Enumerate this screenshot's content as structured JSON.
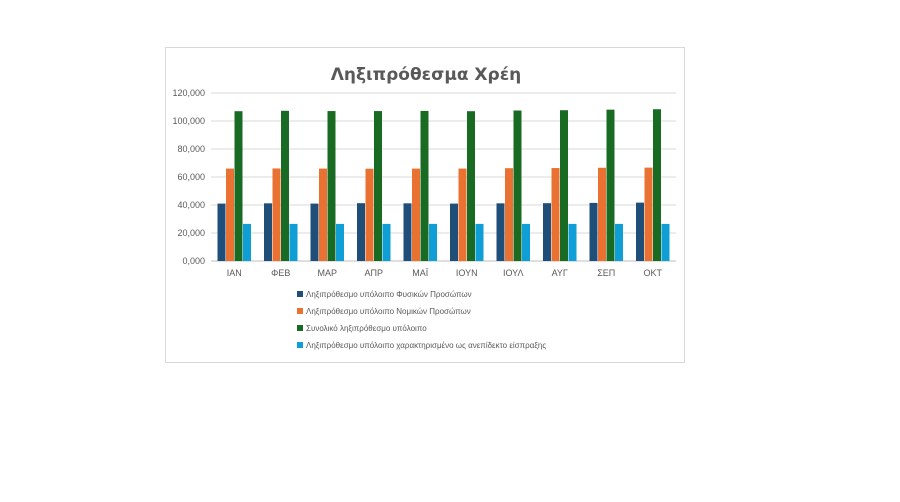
{
  "chart_data": {
    "type": "bar",
    "title": "Ληξιπρόθεσμα Χρέη",
    "xlabel": "",
    "ylabel": "",
    "ylim": [
      0,
      120000
    ],
    "yticks": [
      0,
      20000,
      40000,
      60000,
      80000,
      100000,
      120000
    ],
    "ytick_labels": [
      "0,000",
      "20,000",
      "40,000",
      "60,000",
      "80,000",
      "100,000",
      "120,000"
    ],
    "grid": true,
    "legend_position": "bottom",
    "categories": [
      "ΙΑΝ",
      "ΦΕΒ",
      "ΜΑΡ",
      "ΑΠΡ",
      "ΜΑΪ",
      "ΙΟΥΝ",
      "ΙΟΥΛ",
      "ΑΥΓ",
      "ΣΕΠ",
      "ΟΚΤ"
    ],
    "series": [
      {
        "name": "Ληξιπρόθεσμο υπόλοιπο Φυσικών Προσώπων",
        "color": "#1f4e79",
        "values": [
          41000,
          41200,
          41000,
          41300,
          41200,
          41000,
          41200,
          41300,
          41500,
          41700
        ]
      },
      {
        "name": "Ληξιπρόθεσμο υπόλοιπο Νομικών Προσώπων",
        "color": "#e97132",
        "values": [
          66000,
          66100,
          66000,
          65900,
          66000,
          66000,
          66300,
          66400,
          66600,
          66700
        ]
      },
      {
        "name": "Συνολικό ληξιπρόθεσμο υπόλοιπο",
        "color": "#196b24",
        "values": [
          107000,
          107300,
          107100,
          107100,
          107200,
          107000,
          107500,
          107700,
          108100,
          108400
        ]
      },
      {
        "name": "Ληξιπρόθεσμο υπόλοιπο χαρακτηρισμένο ως ανεπίδεκτο είσπραξης",
        "color": "#0f9ed5",
        "values": [
          26500,
          26500,
          26500,
          26500,
          26500,
          26500,
          26500,
          26500,
          26500,
          26500
        ]
      }
    ]
  }
}
